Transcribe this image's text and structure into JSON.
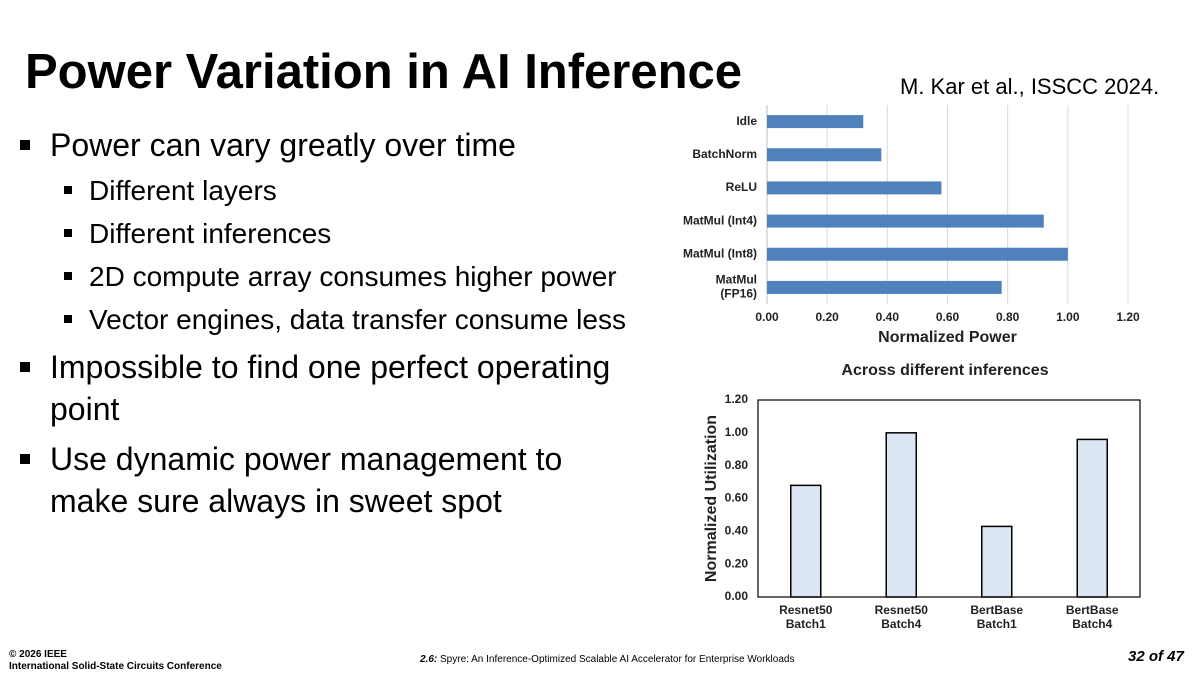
{
  "title": "Power Variation in AI Inference",
  "citation": "M. Kar et al., ISSCC 2024.",
  "bullets": [
    {
      "text": "Power can vary greatly over time",
      "level": 1
    },
    {
      "text": "Different layers",
      "level": 2
    },
    {
      "text": "Different inferences",
      "level": 2
    },
    {
      "text": "2D compute array consumes higher power",
      "level": 2
    },
    {
      "text": "Vector engines, data transfer consume less",
      "level": 2
    },
    {
      "text": "Impossible to find one perfect operating point",
      "level": 1
    },
    {
      "text": "Use dynamic power management to make sure always in sweet spot",
      "level": 1
    }
  ],
  "footer": {
    "copyright": "© 2026 IEEE",
    "conference": "International Solid-State Circuits Conference",
    "session": "2.6:",
    "paper": " Spyre: An Inference-Optimized Scalable AI Accelerator for Enterprise Workloads",
    "page": "32 of 47"
  },
  "chart_data": [
    {
      "type": "hbar",
      "categories": [
        "Idle",
        "BatchNorm",
        "ReLU",
        "MatMul (Int4)",
        "MatMul (Int8)",
        "MatMul\n(FP16)"
      ],
      "values": [
        0.32,
        0.38,
        0.58,
        0.92,
        1.0,
        0.78
      ],
      "color": "#4f81bd",
      "x_label": "Normalized Power",
      "xlim": [
        0,
        1.2
      ],
      "xticks": [
        {
          "value": 0,
          "label": "0.00"
        },
        {
          "value": 0.2,
          "label": "0.20"
        },
        {
          "value": 0.4,
          "label": "0.40"
        },
        {
          "value": 0.6,
          "label": "0.60"
        },
        {
          "value": 0.8,
          "label": "0.80"
        },
        {
          "value": 1.0,
          "label": "1.00"
        },
        {
          "value": 1.2,
          "label": "1.20"
        }
      ],
      "grid": true
    },
    {
      "type": "bar",
      "title": "Across different inferences",
      "categories": [
        "Resnet50\nBatch1",
        "Resnet50\nBatch4",
        "BertBase\nBatch1",
        "BertBase\nBatch4"
      ],
      "values": [
        0.68,
        1.0,
        0.43,
        0.96
      ],
      "color": "#dce6f2",
      "edge_color": "#000000",
      "y_label": "Normalized Utilization",
      "ylim": [
        0,
        1.2
      ],
      "yticks": [
        {
          "value": 0,
          "label": "0.00"
        },
        {
          "value": 0.2,
          "label": "0.20"
        },
        {
          "value": 0.4,
          "label": "0.40"
        },
        {
          "value": 0.6,
          "label": "0.60"
        },
        {
          "value": 0.8,
          "label": "0.80"
        },
        {
          "value": 1.0,
          "label": "1.00"
        },
        {
          "value": 1.2,
          "label": "1.20"
        }
      ],
      "grid": false
    }
  ]
}
